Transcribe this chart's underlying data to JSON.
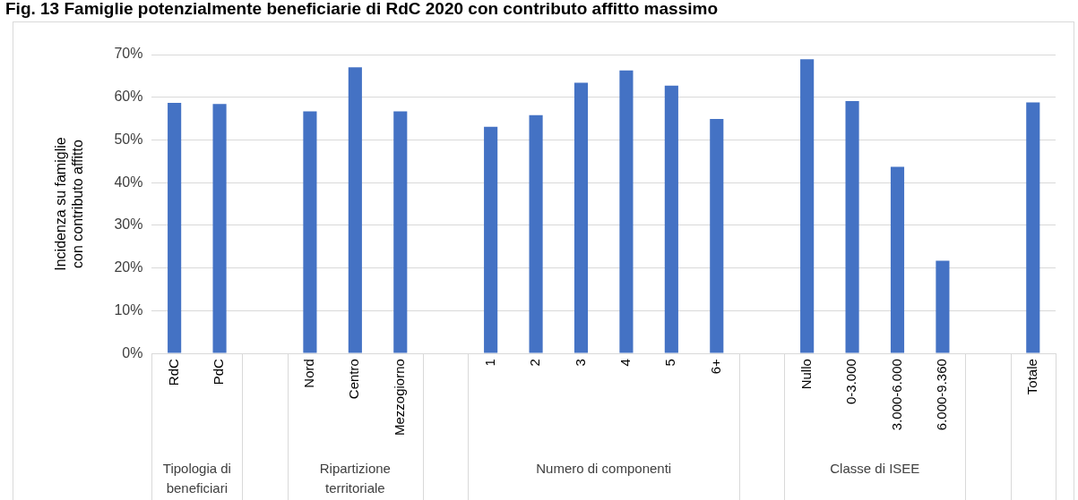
{
  "chart_data": {
    "type": "bar",
    "title": "Fig. 13 Famiglie potenzialmente beneficiarie di RdC 2020 con contributo affitto massimo",
    "ylabel": "Incidenza su famiglie\ncon contributo affitto",
    "categories": [
      "RdC",
      "PdC",
      null,
      "Nord",
      "Centro",
      "Mezzogiorno",
      null,
      "1",
      "2",
      "3",
      "4",
      "5",
      "6+",
      null,
      "Nullo",
      "0-3.000",
      "3.000-6.000",
      "6.000-9.360",
      null,
      "Totale"
    ],
    "values": [
      58.7,
      58.4,
      null,
      56.7,
      67.0,
      56.7,
      null,
      53.1,
      55.8,
      63.4,
      66.3,
      62.7,
      54.9,
      null,
      68.9,
      59.1,
      43.7,
      21.7,
      null,
      58.8
    ],
    "color": "#4472c4",
    "ylim": [
      0,
      70
    ],
    "yticks": [
      {
        "value": 0,
        "label": "0%"
      },
      {
        "value": 10,
        "label": "10%"
      },
      {
        "value": 20,
        "label": "20%"
      },
      {
        "value": 30,
        "label": "30%"
      },
      {
        "value": 40,
        "label": "40%"
      },
      {
        "value": 50,
        "label": "50%"
      },
      {
        "value": 60,
        "label": "60%"
      },
      {
        "value": 70,
        "label": "70%"
      }
    ],
    "grid": "y",
    "legend": false,
    "annotations": [
      "Tipologia di beneficiari",
      "Ripartizione territoriale",
      "Numero di componenti",
      "Classe di ISEE"
    ]
  }
}
